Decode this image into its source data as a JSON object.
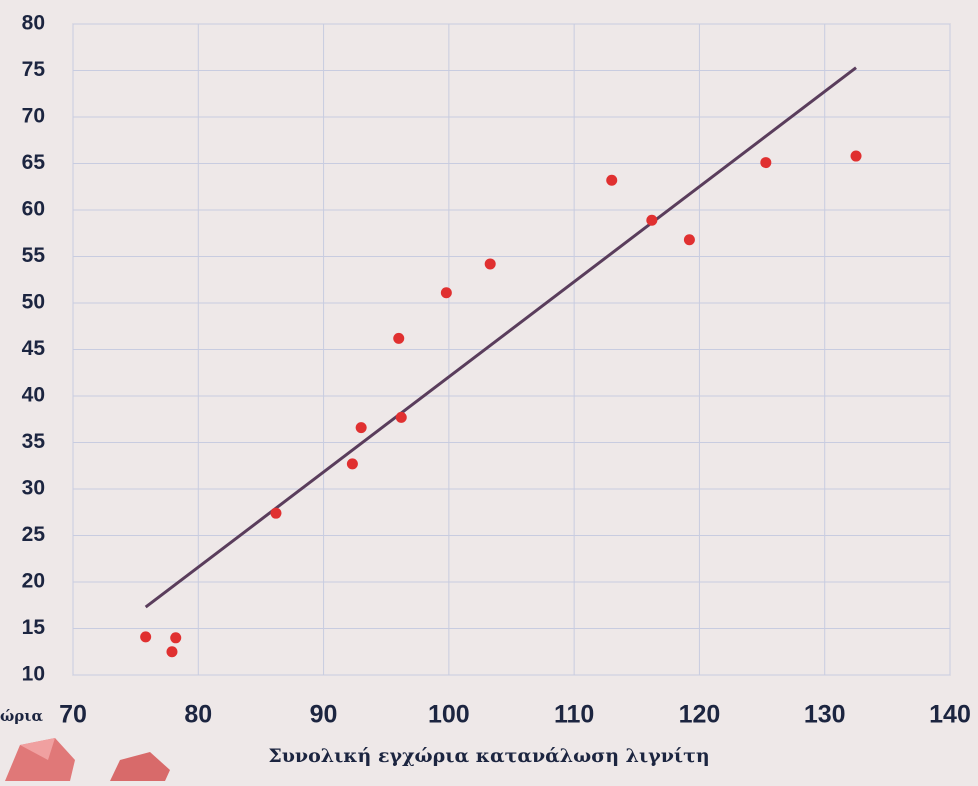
{
  "chart_data": {
    "type": "scatter",
    "x_label": "Συνολική εγχώρια κατανάλωση λιγνίτη",
    "side_label": "ώρια",
    "x": [
      75.8,
      78.2,
      77.9,
      86.2,
      92.3,
      93.0,
      96.2,
      96.0,
      99.8,
      103.3,
      113.0,
      116.2,
      119.2,
      125.3,
      132.5
    ],
    "values": [
      14.1,
      14.0,
      12.5,
      27.4,
      32.7,
      36.6,
      37.7,
      46.2,
      51.1,
      54.2,
      63.2,
      58.9,
      56.8,
      65.1,
      65.8
    ],
    "color": "#e03030",
    "trendline": {
      "x": [
        75.8,
        132.5
      ],
      "y": [
        17.3,
        75.3
      ],
      "color": "#5a3d5c"
    },
    "xlim": [
      70,
      140
    ],
    "xticks": [
      70,
      80,
      90,
      100,
      110,
      120,
      130,
      140
    ],
    "ylim": [
      10,
      80
    ],
    "yticks": [
      10,
      15,
      20,
      25,
      30,
      35,
      40,
      45,
      50,
      55,
      60,
      65,
      70,
      75,
      80
    ],
    "grid": true
  }
}
